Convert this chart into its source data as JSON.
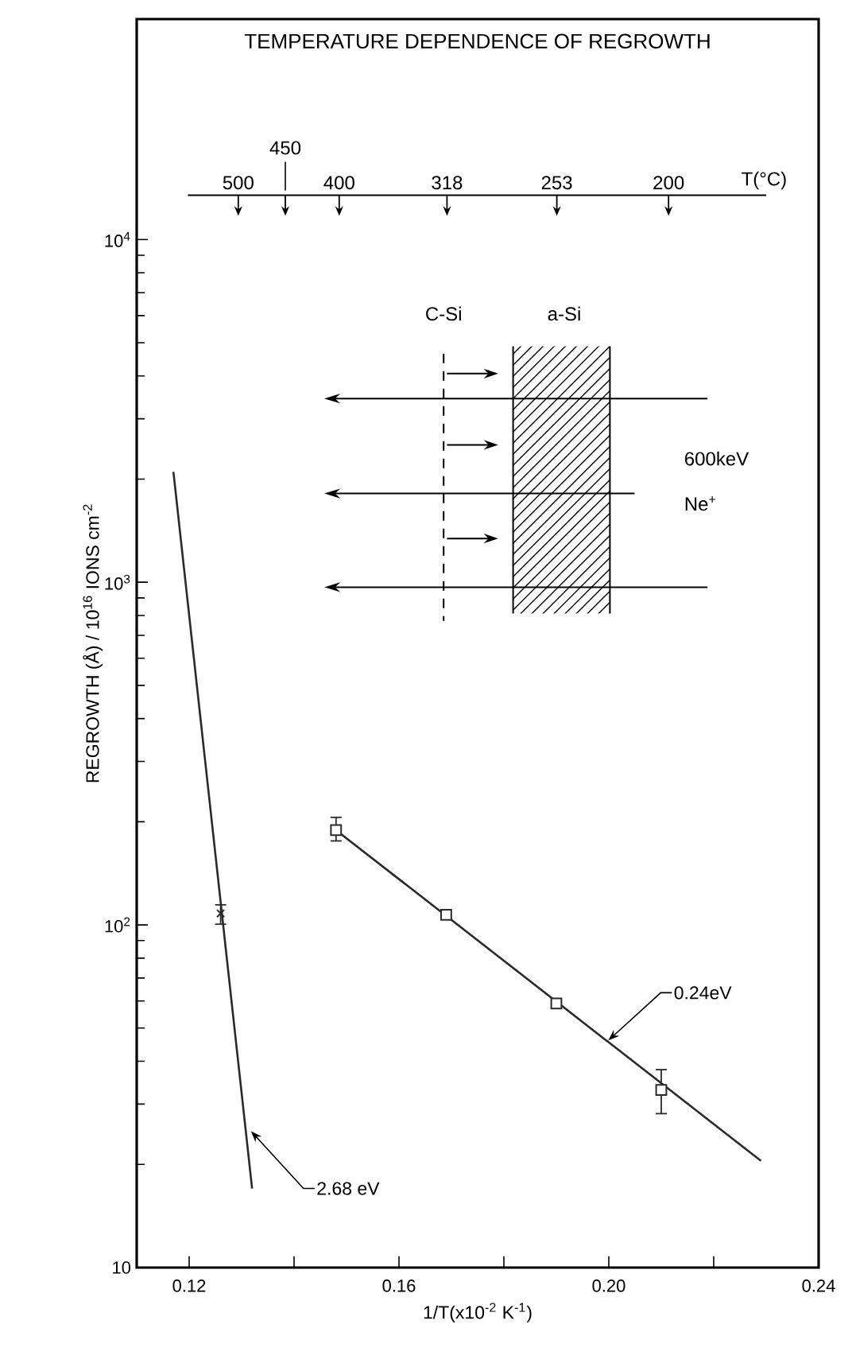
{
  "chart_data": {
    "type": "scatter",
    "title": "TEMPERATURE DEPENDENCE OF REGROWTH",
    "xlabel": "1/T(x10$^{-2}$ K$^{-1}$)",
    "ylabel": "REGROWTH (Å) / 10$^{16}$ IONS cm$^{-2}$",
    "log": "y",
    "xlim": [
      0.11,
      0.24
    ],
    "ylim": [
      10,
      44000
    ],
    "xticks": [
      0.12,
      {
        "value": 0.14,
        "label": null
      },
      0.16,
      {
        "value": 0.18,
        "label": null
      },
      {
        "value": 0.2,
        "label": "0.20"
      },
      {
        "value": 0.22,
        "label": null
      },
      0.24
    ],
    "yticks": [
      10,
      {
        "value": 100,
        "label": "10$^{2}$"
      },
      {
        "value": 1000,
        "label": "10$^{3}$"
      },
      {
        "value": 10000,
        "label": "10$^{4}$"
      }
    ],
    "series": [
      {
        "marker": "square",
        "color": "#2a2a2a",
        "x": [
          0.148,
          0.169,
          0.19,
          0.21
        ],
        "values": [
          189,
          107,
          59,
          33
        ],
        "errors": [
          [
            175,
            207
          ],
          null,
          null,
          [
            28,
            38
          ]
        ]
      },
      {
        "type": "line",
        "color": "#2a2a2a",
        "x": [
          0.148,
          0.229
        ],
        "values": [
          189,
          20.5
        ]
      },
      {
        "type": "line",
        "color": "#2a2a2a",
        "x": [
          0.117,
          0.132
        ],
        "values": [
          2100,
          17
        ]
      },
      {
        "marker": "cross",
        "color": "#2a2a2a",
        "x": [
          0.126
        ],
        "values": [
          108
        ],
        "errors": [
          [
            100,
            115
          ]
        ]
      }
    ],
    "annotations": [
      {
        "text": "2.68 eV",
        "x": 0.1318,
        "y": 25
      },
      {
        "text": "0.24eV",
        "x": 0.1999,
        "y": 46
      },
      "C-Si",
      "a-Si",
      "600keV",
      "Ne$^{+}$",
      "T(°C)",
      "500",
      "450",
      "400",
      "318",
      "253",
      "200"
    ]
  }
}
